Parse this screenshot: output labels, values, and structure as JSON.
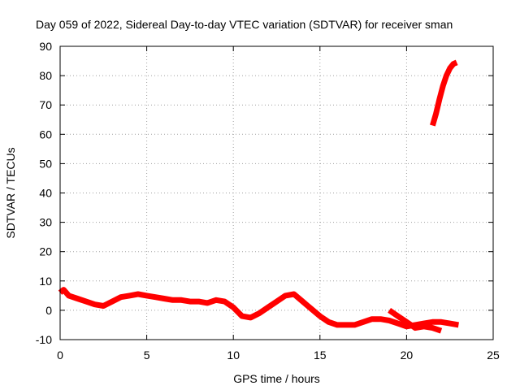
{
  "chart_data": {
    "type": "line",
    "title": "Day 059 of 2022, Sidereal Day-to-day VTEC variation (SDTVAR) for receiver sman",
    "xlabel": "GPS time / hours",
    "ylabel": "SDTVAR / TECUs",
    "xlim": [
      0,
      25
    ],
    "ylim": [
      -10,
      90
    ],
    "xticks": [
      0,
      5,
      10,
      15,
      20,
      25
    ],
    "yticks": [
      -10,
      0,
      10,
      20,
      30,
      40,
      50,
      60,
      70,
      80,
      90
    ],
    "grid": true,
    "legend": "none",
    "series": [
      {
        "color": "#ff0000",
        "points": [
          [
            0.0,
            6.0
          ],
          [
            0.2,
            7.0
          ],
          [
            0.5,
            5.0
          ],
          [
            1.0,
            4.0
          ],
          [
            1.5,
            3.0
          ],
          [
            2.0,
            2.0
          ],
          [
            2.5,
            1.5
          ],
          [
            3.0,
            3.0
          ],
          [
            3.5,
            4.5
          ],
          [
            4.0,
            5.0
          ],
          [
            4.5,
            5.5
          ],
          [
            5.0,
            5.0
          ],
          [
            5.5,
            4.5
          ],
          [
            6.0,
            4.0
          ],
          [
            6.5,
            3.5
          ],
          [
            7.0,
            3.5
          ],
          [
            7.5,
            3.0
          ],
          [
            8.0,
            3.0
          ],
          [
            8.5,
            2.5
          ],
          [
            9.0,
            3.5
          ],
          [
            9.5,
            3.0
          ],
          [
            10.0,
            1.0
          ],
          [
            10.5,
            -2.0
          ],
          [
            11.0,
            -2.5
          ],
          [
            11.5,
            -1.0
          ],
          [
            12.0,
            1.0
          ],
          [
            12.5,
            3.0
          ],
          [
            13.0,
            5.0
          ],
          [
            13.5,
            5.5
          ],
          [
            14.0,
            3.0
          ],
          [
            14.5,
            0.5
          ],
          [
            15.0,
            -2.0
          ],
          [
            15.5,
            -4.0
          ],
          [
            16.0,
            -5.0
          ],
          [
            16.5,
            -5.0
          ],
          [
            17.0,
            -5.0
          ],
          [
            17.5,
            -4.0
          ],
          [
            18.0,
            -3.0
          ],
          [
            18.5,
            -3.0
          ],
          [
            19.0,
            -3.5
          ],
          [
            19.5,
            -4.5
          ],
          [
            20.0,
            -5.5
          ],
          [
            20.5,
            -5.0
          ],
          [
            21.0,
            -4.5
          ],
          [
            21.5,
            -4.0
          ],
          [
            22.0,
            -4.0
          ],
          [
            22.5,
            -4.5
          ],
          [
            23.0,
            -5.0
          ]
        ]
      },
      {
        "color": "#ff0000",
        "points": [
          [
            19.0,
            0.0
          ],
          [
            19.5,
            -2.0
          ],
          [
            20.0,
            -4.0
          ],
          [
            20.5,
            -6.0
          ],
          [
            21.0,
            -5.5
          ],
          [
            21.5,
            -6.0
          ],
          [
            22.0,
            -7.0
          ]
        ]
      },
      {
        "color": "#ff0000",
        "points": [
          [
            21.5,
            63.0
          ],
          [
            21.7,
            67.0
          ],
          [
            21.9,
            72.0
          ],
          [
            22.1,
            76.5
          ],
          [
            22.3,
            80.0
          ],
          [
            22.5,
            82.5
          ],
          [
            22.7,
            84.0
          ],
          [
            22.9,
            84.5
          ]
        ]
      }
    ]
  }
}
